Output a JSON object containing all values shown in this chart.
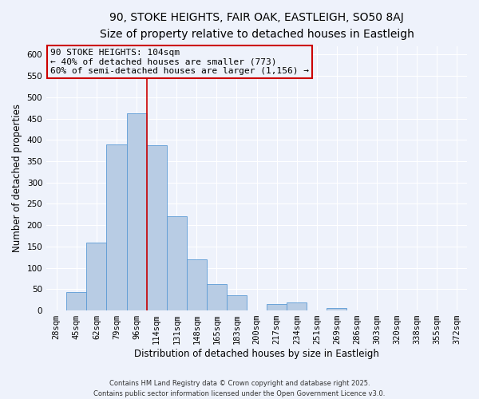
{
  "title_line1": "90, STOKE HEIGHTS, FAIR OAK, EASTLEIGH, SO50 8AJ",
  "title_line2": "Size of property relative to detached houses in Eastleigh",
  "xlabel": "Distribution of detached houses by size in Eastleigh",
  "ylabel": "Number of detached properties",
  "bar_labels": [
    "28sqm",
    "45sqm",
    "62sqm",
    "79sqm",
    "96sqm",
    "114sqm",
    "131sqm",
    "148sqm",
    "165sqm",
    "183sqm",
    "200sqm",
    "217sqm",
    "234sqm",
    "251sqm",
    "269sqm",
    "286sqm",
    "303sqm",
    "320sqm",
    "338sqm",
    "355sqm",
    "372sqm"
  ],
  "bar_values": [
    0,
    43,
    160,
    390,
    462,
    388,
    220,
    120,
    62,
    35,
    0,
    15,
    18,
    0,
    6,
    0,
    0,
    0,
    0,
    0,
    0
  ],
  "bar_color": "#b8cce4",
  "bar_edge_color": "#5b9bd5",
  "background_color": "#eef2fb",
  "grid_color": "#ffffff",
  "ylim": [
    0,
    620
  ],
  "yticks": [
    0,
    50,
    100,
    150,
    200,
    250,
    300,
    350,
    400,
    450,
    500,
    550,
    600
  ],
  "vline_x_idx": 4.5,
  "vline_color": "#cc0000",
  "annotation_title": "90 STOKE HEIGHTS: 104sqm",
  "annotation_line2": "← 40% of detached houses are smaller (773)",
  "annotation_line3": "60% of semi-detached houses are larger (1,156) →",
  "annotation_box_color": "#cc0000",
  "footer_line1": "Contains HM Land Registry data © Crown copyright and database right 2025.",
  "footer_line2": "Contains public sector information licensed under the Open Government Licence v3.0.",
  "title1_fontsize": 10,
  "title2_fontsize": 9,
  "axis_label_fontsize": 8.5,
  "tick_fontsize": 7.5,
  "annotation_fontsize": 8,
  "footer_fontsize": 6
}
